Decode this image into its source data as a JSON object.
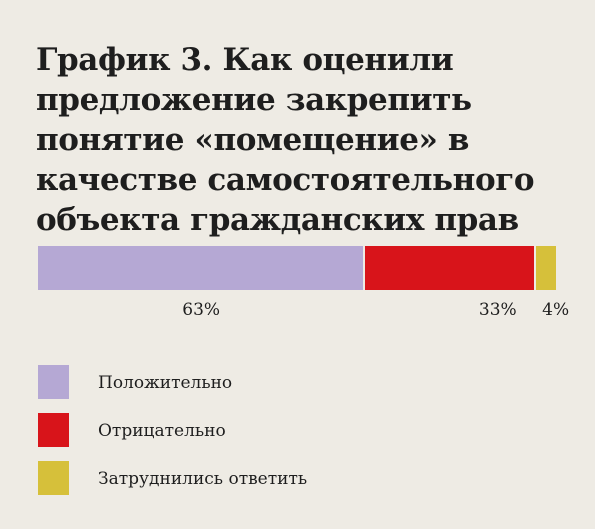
{
  "title": {
    "lead": "График 3.",
    "text": "Как оценили предложение закрепить понятие «помещение» в качестве самостоятельного объекта гражданских прав"
  },
  "chart_data": {
    "type": "bar",
    "orientation": "horizontal-stacked",
    "series": [
      {
        "name": "Положительно",
        "value": 63,
        "label": "63%",
        "color": "#b5a8d4"
      },
      {
        "name": "Отрицательно",
        "value": 33,
        "label": "33%",
        "color": "#d8141a"
      },
      {
        "name": "Затруднились ответить",
        "value": 4,
        "label": "4%",
        "color": "#d6c03a"
      }
    ],
    "unit": "%",
    "legend_position": "bottom-left"
  }
}
